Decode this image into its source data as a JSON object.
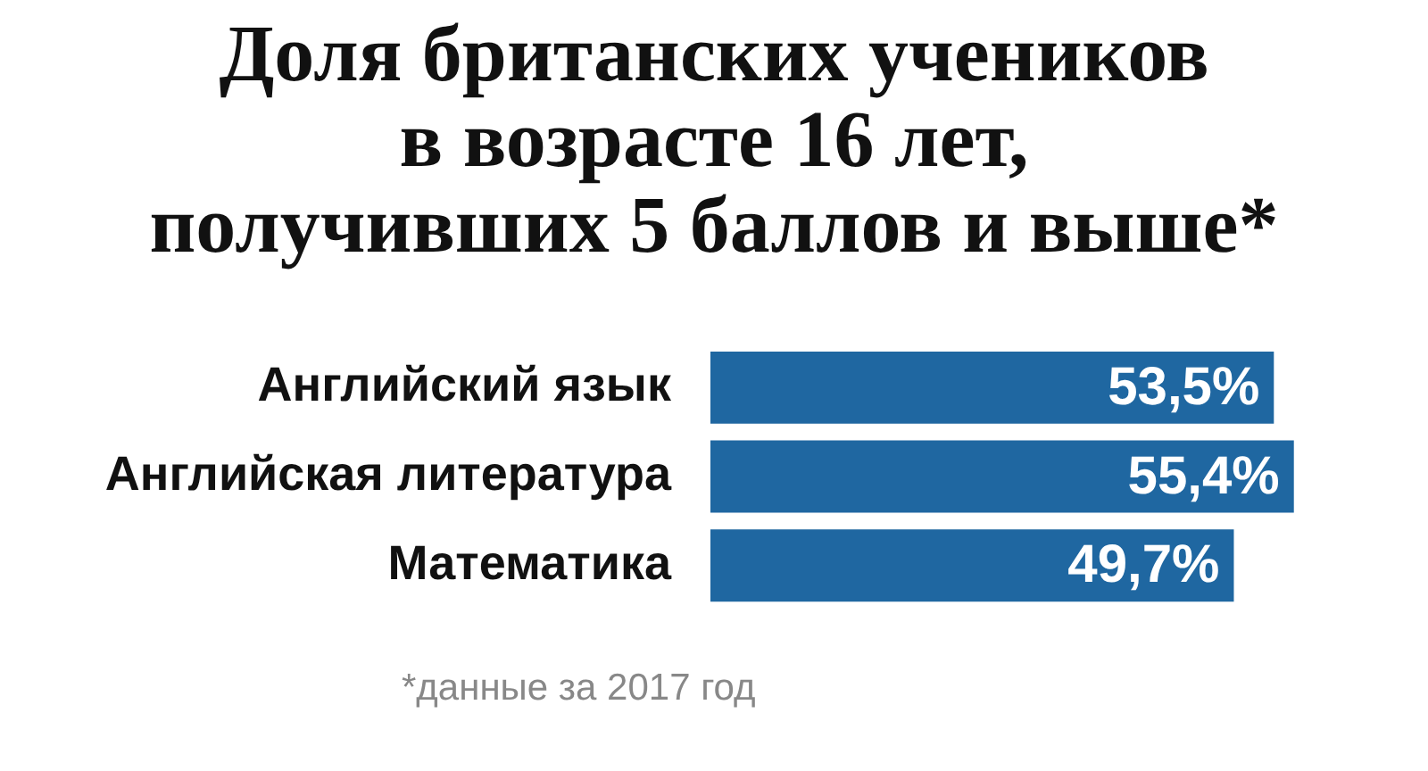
{
  "chart_data": {
    "type": "bar",
    "orientation": "horizontal",
    "title": "Доля британских учеников\nв возрасте 16 лет,\nполучивших 5 баллов и выше*",
    "categories": [
      "Английский язык",
      "Английская литература",
      "Математика"
    ],
    "values": [
      53.5,
      55.4,
      49.7
    ],
    "value_labels": [
      "53,5%",
      "55,4%",
      "49,7%"
    ],
    "color": "#1f67a1",
    "annotations": [
      "*данные за 2017 год"
    ]
  }
}
